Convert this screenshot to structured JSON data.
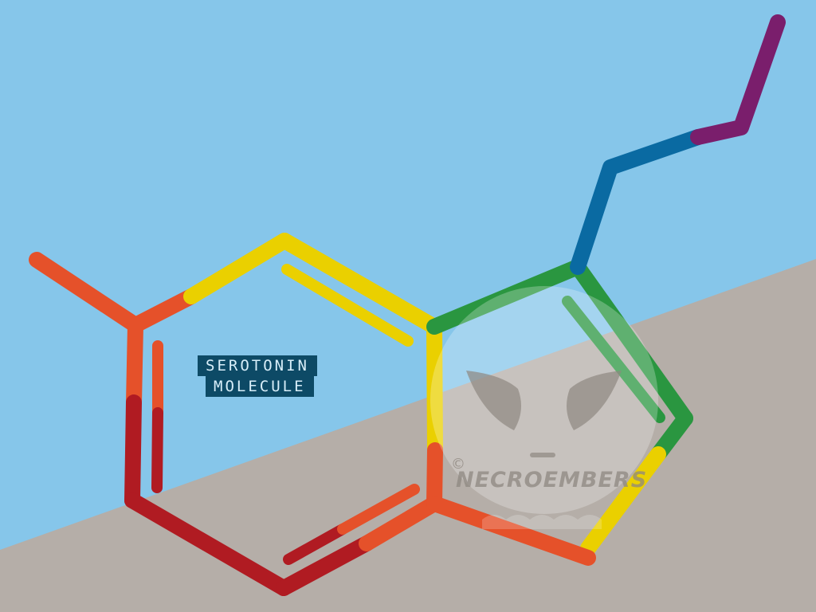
{
  "label": {
    "line1": "SEROTONIN",
    "line2": "MOLECULE"
  },
  "watermark": {
    "copyright": "©",
    "brand": "NECROEMBERS"
  },
  "colors": {
    "sky": "#86c6ea",
    "ground": "#b5aea8",
    "orange": "#e5512a",
    "red": "#b01b22",
    "yellow": "#ead000",
    "green": "#2a9640",
    "blue": "#0a6aa2",
    "purple": "#7a1e6c",
    "label_bg": "#0d4a66"
  }
}
